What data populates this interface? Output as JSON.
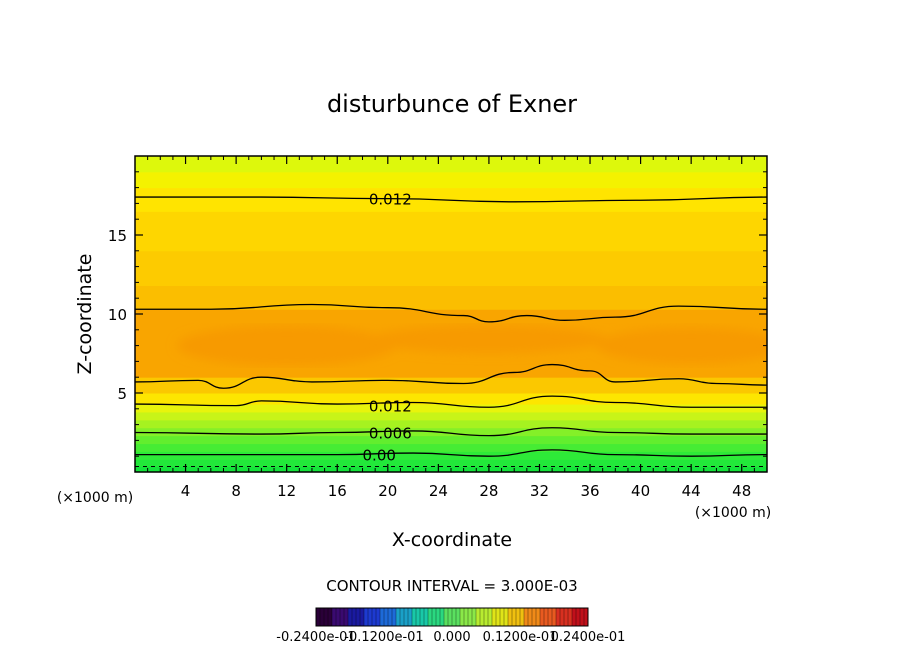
{
  "chart_data": {
    "type": "heatmap",
    "title": "disturbunce of Exner",
    "xlabel": "X-coordinate",
    "ylabel": "Z-coordinate",
    "x_unit_label": "(×1000 m)",
    "y_unit_label": "(×1000 m)",
    "xlim": [
      0,
      50
    ],
    "ylim": [
      0,
      20
    ],
    "x_ticks": [
      4,
      8,
      12,
      16,
      20,
      24,
      28,
      32,
      36,
      40,
      44,
      48
    ],
    "y_ticks": [
      5,
      10,
      15
    ],
    "x_tick_labels": [
      "4",
      "8",
      "12",
      "16",
      "20",
      "24",
      "28",
      "32",
      "36",
      "40",
      "44",
      "48"
    ],
    "y_tick_labels": [
      "5",
      "10",
      "15"
    ],
    "contour_interval_text": "CONTOUR INTERVAL = 3.000E-03",
    "contour_labels": [
      {
        "text": "0.012",
        "x": 18.5,
        "z": 17.3
      },
      {
        "text": "0.012",
        "x": 18.5,
        "z": 4.2
      },
      {
        "text": "0.006",
        "x": 18.5,
        "z": 2.5
      },
      {
        "text": "0.00",
        "x": 18.0,
        "z": 1.1
      }
    ],
    "contours": [
      {
        "level": 0.012,
        "points": [
          [
            0,
            17.4
          ],
          [
            10,
            17.4
          ],
          [
            20,
            17.3
          ],
          [
            30,
            17.1
          ],
          [
            40,
            17.2
          ],
          [
            50,
            17.4
          ]
        ]
      },
      {
        "level": 0.009,
        "points": [
          [
            0,
            10.3
          ],
          [
            6,
            10.3
          ],
          [
            14,
            10.6
          ],
          [
            20,
            10.4
          ],
          [
            26,
            9.9
          ],
          [
            28,
            9.5
          ],
          [
            31,
            9.9
          ],
          [
            34,
            9.6
          ],
          [
            38,
            9.8
          ],
          [
            43,
            10.5
          ],
          [
            50,
            10.3
          ]
        ]
      },
      {
        "level": 0.009,
        "points": [
          [
            0,
            5.7
          ],
          [
            5,
            5.8
          ],
          [
            7,
            5.3
          ],
          [
            10,
            6.0
          ],
          [
            14,
            5.7
          ],
          [
            20,
            5.8
          ],
          [
            26,
            5.6
          ],
          [
            30,
            6.3
          ],
          [
            33,
            6.8
          ],
          [
            36,
            6.4
          ],
          [
            38,
            5.7
          ],
          [
            43,
            5.9
          ],
          [
            46,
            5.6
          ],
          [
            50,
            5.5
          ]
        ]
      },
      {
        "level": 0.012,
        "points": [
          [
            0,
            4.3
          ],
          [
            8,
            4.2
          ],
          [
            10,
            4.5
          ],
          [
            16,
            4.3
          ],
          [
            22,
            4.4
          ],
          [
            28,
            4.1
          ],
          [
            33,
            4.8
          ],
          [
            38,
            4.4
          ],
          [
            44,
            4.1
          ],
          [
            50,
            4.1
          ]
        ]
      },
      {
        "level": 0.006,
        "points": [
          [
            0,
            2.5
          ],
          [
            10,
            2.4
          ],
          [
            16,
            2.5
          ],
          [
            22,
            2.6
          ],
          [
            28,
            2.3
          ],
          [
            33,
            2.8
          ],
          [
            38,
            2.5
          ],
          [
            44,
            2.4
          ],
          [
            50,
            2.4
          ]
        ]
      },
      {
        "level": 0.0,
        "points": [
          [
            0,
            1.1
          ],
          [
            10,
            1.1
          ],
          [
            16,
            1.1
          ],
          [
            22,
            1.2
          ],
          [
            28,
            1.0
          ],
          [
            33,
            1.4
          ],
          [
            38,
            1.1
          ],
          [
            44,
            1.0
          ],
          [
            50,
            1.1
          ]
        ]
      }
    ],
    "bands": [
      {
        "z0": 0.0,
        "z1": 0.35,
        "color": "#14e33a"
      },
      {
        "z0": 0.35,
        "z1": 0.8,
        "color": "#22e83a"
      },
      {
        "z0": 0.8,
        "z1": 1.3,
        "color": "#2eea38"
      },
      {
        "z0": 1.3,
        "z1": 1.8,
        "color": "#46ec34"
      },
      {
        "z0": 1.8,
        "z1": 2.3,
        "color": "#62ee2e"
      },
      {
        "z0": 2.3,
        "z1": 2.8,
        "color": "#84f028"
      },
      {
        "z0": 2.8,
        "z1": 3.3,
        "color": "#a6f220"
      },
      {
        "z0": 3.3,
        "z1": 3.8,
        "color": "#c8f418"
      },
      {
        "z0": 3.8,
        "z1": 4.3,
        "color": "#e8f40c"
      },
      {
        "z0": 4.3,
        "z1": 5.0,
        "color": "#fde600"
      },
      {
        "z0": 5.0,
        "z1": 6.0,
        "color": "#fbc800"
      },
      {
        "z0": 6.0,
        "z1": 10.3,
        "color": "#f9a500"
      },
      {
        "z0": 10.3,
        "z1": 11.8,
        "color": "#fbbe00"
      },
      {
        "z0": 11.8,
        "z1": 14.0,
        "color": "#fdcb00"
      },
      {
        "z0": 14.0,
        "z1": 16.5,
        "color": "#fed600"
      },
      {
        "z0": 16.5,
        "z1": 18.0,
        "color": "#ffe400"
      },
      {
        "z0": 18.0,
        "z1": 19.0,
        "color": "#f4f200"
      },
      {
        "z0": 19.0,
        "z1": 20.0,
        "color": "#ddf80c"
      }
    ],
    "core": {
      "color": "#f79a00"
    },
    "colorbar": {
      "labels": [
        "-0.2400e-01",
        "-0.1200e-01",
        "0.000",
        "0.1200e-01",
        "0.2400e-01"
      ],
      "colors": [
        "#2a0038",
        "#3a0a70",
        "#1a1aa0",
        "#1d3ad0",
        "#1d6ad8",
        "#1aa0c8",
        "#19c8a8",
        "#2ad880",
        "#5ae060",
        "#8ae848",
        "#b8ec30",
        "#e0e418",
        "#f0c010",
        "#f08a18",
        "#e85a20",
        "#d83020",
        "#c0101a"
      ]
    }
  }
}
